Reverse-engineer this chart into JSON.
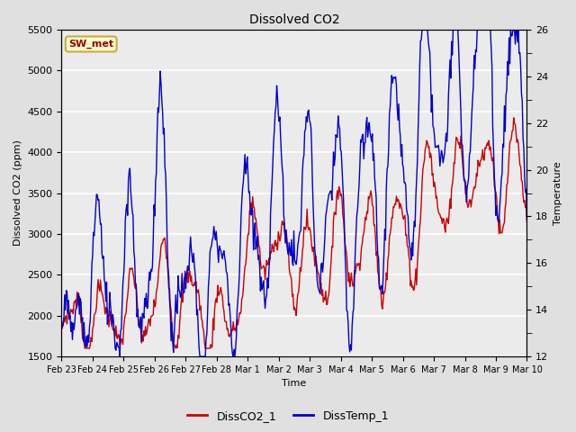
{
  "title": "Dissolved CO2",
  "xlabel": "Time",
  "ylabel_left": "Dissolved CO2 (ppm)",
  "ylabel_right": "Temperature",
  "ylim_left": [
    1500,
    5500
  ],
  "ylim_right": [
    12,
    26
  ],
  "yticks_left": [
    1500,
    2000,
    2500,
    3000,
    3500,
    4000,
    4500,
    5000,
    5500
  ],
  "yticks_right_major": [
    12,
    14,
    16,
    18,
    20,
    22,
    24,
    26
  ],
  "yticks_right_minor": [
    13,
    15,
    17,
    19,
    21,
    23,
    25
  ],
  "bg_color": "#e0e0e0",
  "plot_bg_color": "#ebebeb",
  "legend_entries": [
    "DissCO2_1",
    "DissTemp_1"
  ],
  "line_colors": [
    "#cc0000",
    "#0000cc"
  ],
  "annotation_text": "SW_met",
  "annotation_color": "#990000",
  "annotation_bg": "#ffffcc",
  "annotation_border": "#ccaa44",
  "xtick_labels": [
    "Feb 23",
    "Feb 24",
    "Feb 25",
    "Feb 26",
    "Feb 27",
    "Feb 28",
    "Mar 1",
    "Mar 2",
    "Mar 3",
    "Mar 4",
    "Mar 5",
    "Mar 6",
    "Mar 7",
    "Mar 8",
    "Mar 9",
    "Mar 10"
  ],
  "figsize": [
    6.4,
    4.8
  ],
  "dpi": 100
}
